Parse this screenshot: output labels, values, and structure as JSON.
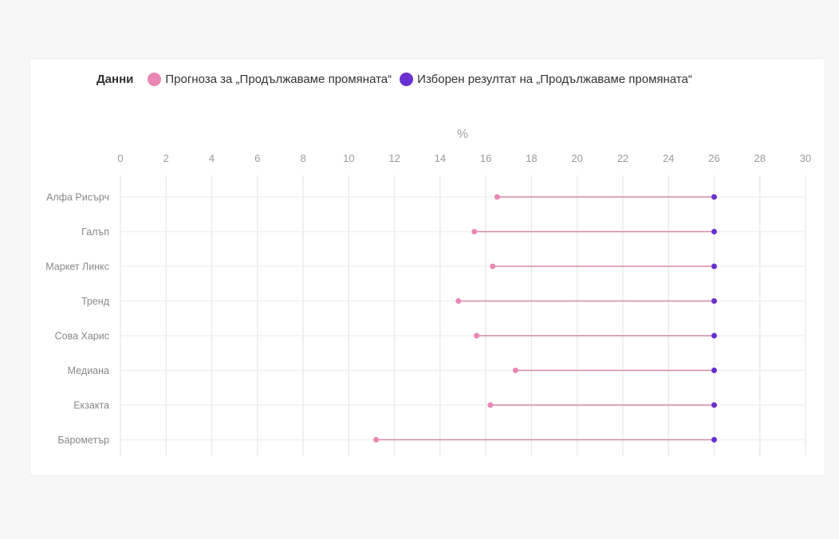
{
  "legend": {
    "title": "Данни",
    "items": [
      {
        "label": "Прогноза за „Продължаваме промяната“",
        "color": "#e886b4"
      },
      {
        "label": "Изборен резултат на „Продължаваме промяната“",
        "color": "#6a2fd0"
      }
    ]
  },
  "chart_data": {
    "type": "dumbbell",
    "xlabel": "%",
    "xlim": [
      0,
      30
    ],
    "xticks": [
      0,
      2,
      4,
      6,
      8,
      10,
      12,
      14,
      16,
      18,
      20,
      22,
      24,
      26,
      28,
      30
    ],
    "grid": true,
    "legend_position": "top-left",
    "categories": [
      "Алфа Рисърч",
      "Галъп",
      "Маркет Линкс",
      "Тренд",
      "Сова Харис",
      "Медиана",
      "Екзакта",
      "Барометър"
    ],
    "series": [
      {
        "name": "Прогноза за „Продължаваме промяната“",
        "color": "#e886b4",
        "values": [
          16.5,
          15.5,
          16.3,
          14.8,
          15.6,
          17.3,
          16.2,
          11.2
        ]
      },
      {
        "name": "Изборен резултат на „Продължаваме промяната“",
        "color": "#6a2fd0",
        "values": [
          26.0,
          26.0,
          26.0,
          26.0,
          26.0,
          26.0,
          26.0,
          26.0
        ]
      }
    ],
    "connector_color": "#d98aae"
  }
}
